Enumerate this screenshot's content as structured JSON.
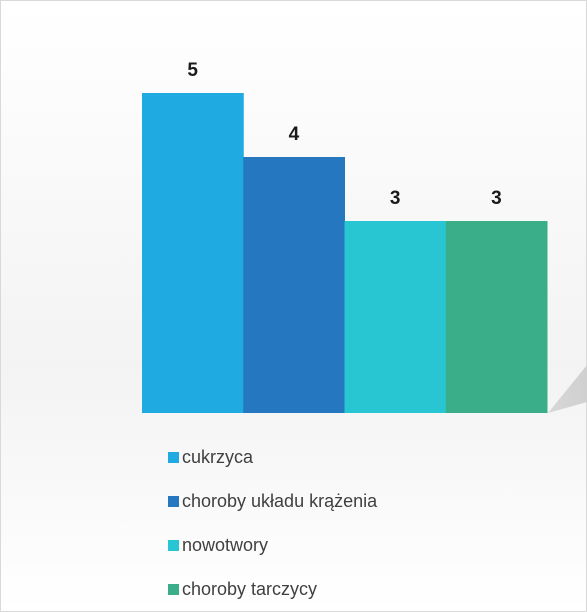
{
  "chart_data": {
    "type": "bar",
    "series": [
      {
        "name": "cukrzyca",
        "color": "#1fabe2",
        "values": [
          5
        ]
      },
      {
        "name": "choroby układu krążenia",
        "color": "#2578c0",
        "values": [
          4
        ]
      },
      {
        "name": "nowotwory",
        "color": "#28c6d3",
        "values": [
          3
        ]
      },
      {
        "name": "choroby tarczycy",
        "color": "#3aae89",
        "values": [
          3
        ]
      }
    ],
    "grid": false,
    "legend": "bottom"
  }
}
